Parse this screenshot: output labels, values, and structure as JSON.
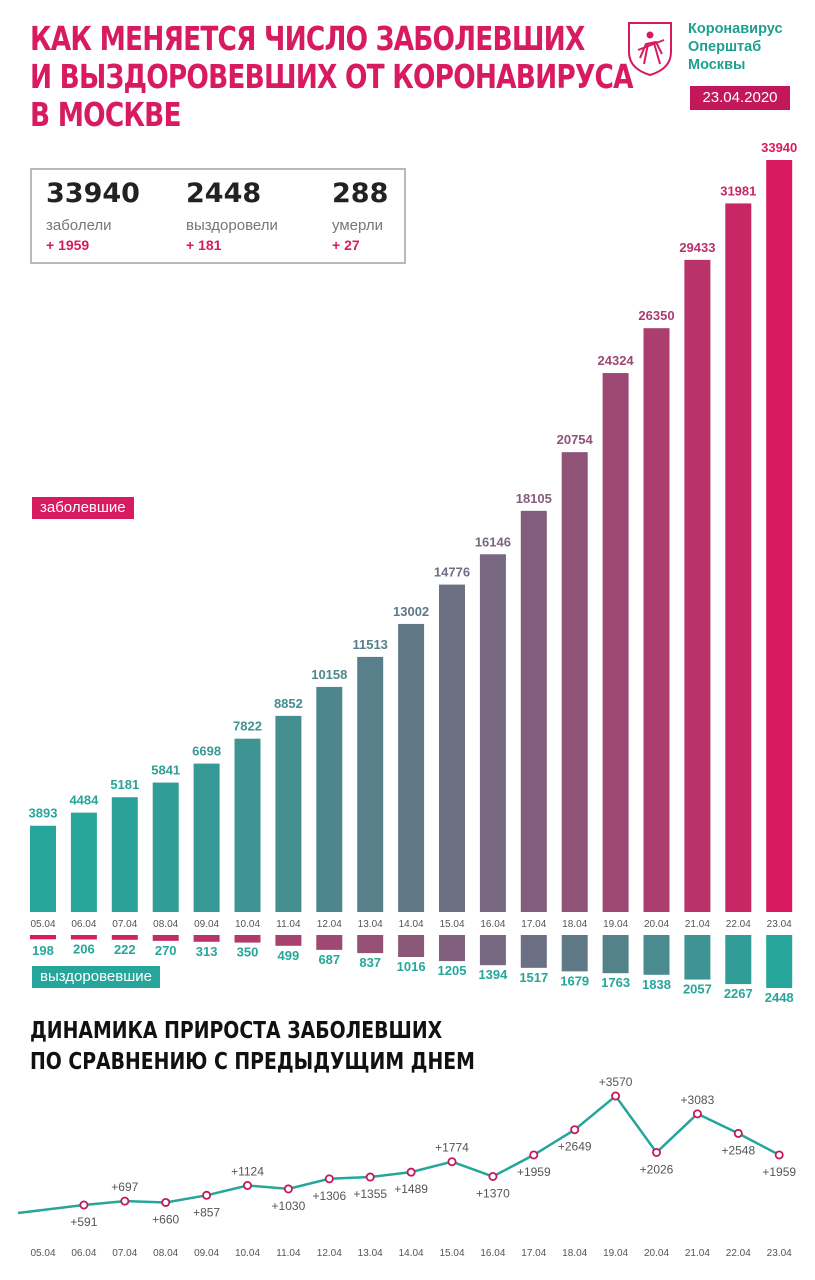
{
  "header": {
    "title_lines": [
      "КАК МЕНЯЕТСЯ ЧИСЛО ЗАБОЛЕВШИХ",
      "И ВЫЗДОРОВЕВШИХ ОТ КОРОНАВИРУСА",
      "В МОСКВЕ"
    ],
    "brand_lines": [
      "Коронавирус",
      "Оперштаб",
      "Москвы"
    ],
    "date": "23.04.2020"
  },
  "stats": {
    "cases": {
      "value": "33940",
      "label": "заболели",
      "delta": "+ 1959"
    },
    "recovered": {
      "value": "2448",
      "label": "выздоровели",
      "delta": "+ 181"
    },
    "deaths": {
      "value": "288",
      "label": "умерли",
      "delta": "+ 27"
    }
  },
  "labels": {
    "sick": "заболевшие",
    "recovered": "выздоровевшие",
    "growth_title_lines": [
      "ДИНАМИКА ПРИРОСТА ЗАБОЛЕВШИХ",
      "ПО СРАВНЕНИЮ С ПРЕДЫДУЩИМ ДНЕМ"
    ]
  },
  "colors": {
    "sick_accent": "#d81b60",
    "sick_start": "#26a69a",
    "sick_end": "#d81b60",
    "recovered_start": "#d81b60",
    "recovered_end": "#26a69a",
    "growth_line": "#26a69a",
    "growth_marker": "#c2185b"
  },
  "chart_data": [
    {
      "type": "bar",
      "categories": [
        "05.04",
        "06.04",
        "07.04",
        "08.04",
        "09.04",
        "10.04",
        "11.04",
        "12.04",
        "13.04",
        "14.04",
        "15.04",
        "16.04",
        "17.04",
        "18.04",
        "19.04",
        "20.04",
        "21.04",
        "22.04",
        "23.04"
      ],
      "series": [
        {
          "name": "заболевшие",
          "values": [
            3893,
            4484,
            5181,
            5841,
            6698,
            7822,
            8852,
            10158,
            11513,
            13002,
            14776,
            16146,
            18105,
            20754,
            24324,
            26350,
            29433,
            31981,
            33940
          ]
        },
        {
          "name": "выздоровевшие",
          "values": [
            198,
            206,
            222,
            270,
            313,
            350,
            499,
            687,
            837,
            1016,
            1205,
            1394,
            1517,
            1679,
            1763,
            1838,
            2057,
            2267,
            2448
          ]
        }
      ]
    },
    {
      "type": "line",
      "categories": [
        "05.04",
        "06.04",
        "07.04",
        "08.04",
        "09.04",
        "10.04",
        "11.04",
        "12.04",
        "13.04",
        "14.04",
        "15.04",
        "16.04",
        "17.04",
        "18.04",
        "19.04",
        "20.04",
        "21.04",
        "22.04",
        "23.04"
      ],
      "values": [
        null,
        591,
        697,
        660,
        857,
        1124,
        1030,
        1306,
        1355,
        1489,
        1774,
        1370,
        1959,
        2649,
        3570,
        2026,
        3083,
        2548,
        1959
      ],
      "labels": [
        "",
        "+591",
        "+697",
        "+660",
        "+857",
        "+1124",
        "+1030",
        "+1306",
        "+1355",
        "+1489",
        "+1774",
        "+1370",
        "+1959",
        "+2649",
        "+3570",
        "+2026",
        "+3083",
        "+2548",
        "+1959"
      ]
    }
  ]
}
